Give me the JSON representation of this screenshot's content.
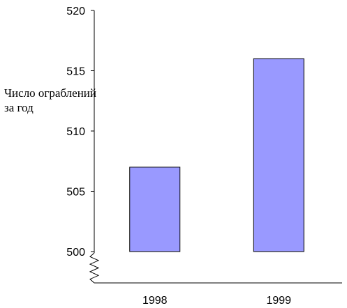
{
  "chart_data": {
    "type": "bar",
    "title": "",
    "xlabel": "",
    "ylabel": "Число ограблений за год",
    "categories": [
      "1998",
      "1999"
    ],
    "values": [
      507,
      516
    ],
    "ylim": [
      500,
      520
    ],
    "yticks": [
      "500",
      "505",
      "510",
      "515",
      "520"
    ],
    "axis_break": true,
    "grid": false,
    "legend": "none",
    "colors": {
      "bar_fill": "#9999ff",
      "bar_stroke": "#000000",
      "axis": "#000000"
    }
  }
}
